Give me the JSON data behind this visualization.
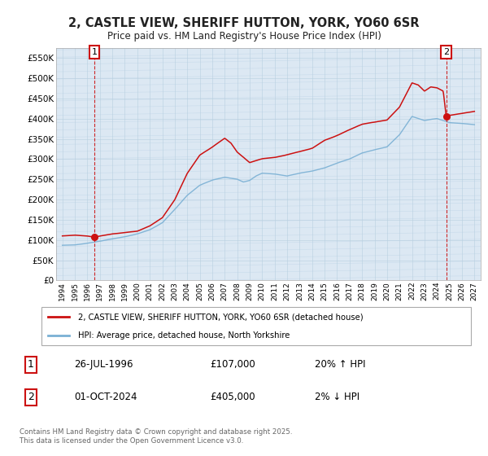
{
  "title_line1": "2, CASTLE VIEW, SHERIFF HUTTON, YORK, YO60 6SR",
  "title_line2": "Price paid vs. HM Land Registry's House Price Index (HPI)",
  "ylim": [
    0,
    575000
  ],
  "ytick_labels": [
    "£0",
    "£50K",
    "£100K",
    "£150K",
    "£200K",
    "£250K",
    "£300K",
    "£350K",
    "£400K",
    "£450K",
    "£500K",
    "£550K"
  ],
  "ytick_values": [
    0,
    50000,
    100000,
    150000,
    200000,
    250000,
    300000,
    350000,
    400000,
    450000,
    500000,
    550000
  ],
  "hpi_color": "#7ab0d4",
  "price_color": "#cc1111",
  "point1_year": 1996.57,
  "point1_price": 107000,
  "point2_year": 2024.75,
  "point2_price": 405000,
  "legend_label_price": "2, CASTLE VIEW, SHERIFF HUTTON, YORK, YO60 6SR (detached house)",
  "legend_label_hpi": "HPI: Average price, detached house, North Yorkshire",
  "footnote1_label": "1",
  "footnote1_date": "26-JUL-1996",
  "footnote1_price": "£107,000",
  "footnote1_hpi": "20% ↑ HPI",
  "footnote2_label": "2",
  "footnote2_date": "01-OCT-2024",
  "footnote2_price": "£405,000",
  "footnote2_hpi": "2% ↓ HPI",
  "copyright_text": "Contains HM Land Registry data © Crown copyright and database right 2025.\nThis data is licensed under the Open Government Licence v3.0.",
  "bg_color": "#ffffff",
  "plot_bg_color": "#dce8f3",
  "grid_color": "#b8cfe0",
  "hatch_bg_color": "#c8daea"
}
